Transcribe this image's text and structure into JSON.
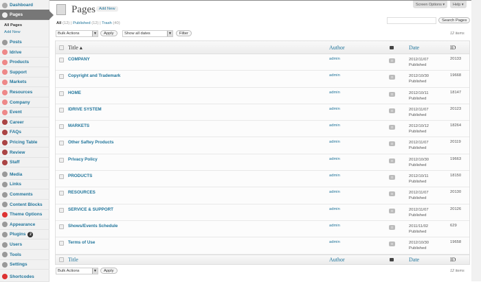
{
  "sidebar": {
    "top": [
      {
        "label": "Dashboard",
        "icon": "dashboard-icon"
      },
      {
        "label": "Pages",
        "icon": "pages-icon"
      }
    ],
    "sub": [
      {
        "label": "All Pages"
      },
      {
        "label": "Add New"
      }
    ],
    "groups": [
      [
        {
          "label": "Posts",
          "icon": "posts-icon",
          "color": "#999"
        },
        {
          "label": "Idrive",
          "icon": "custom-post-icon",
          "color": "#e88"
        },
        {
          "label": "Products",
          "icon": "custom-post-icon",
          "color": "#e88"
        },
        {
          "label": "Support",
          "icon": "custom-post-icon",
          "color": "#e88"
        },
        {
          "label": "Markets",
          "icon": "custom-post-icon",
          "color": "#e88"
        },
        {
          "label": "Resources",
          "icon": "custom-post-icon",
          "color": "#e88"
        },
        {
          "label": "Company",
          "icon": "custom-post-icon",
          "color": "#e88"
        },
        {
          "label": "Event",
          "icon": "custom-post-icon",
          "color": "#e88"
        },
        {
          "label": "Career",
          "icon": "shapes-icon",
          "color": "#a44"
        },
        {
          "label": "FAQs",
          "icon": "shapes-icon",
          "color": "#a44"
        },
        {
          "label": "Pricing Table",
          "icon": "shapes-icon",
          "color": "#a44"
        },
        {
          "label": "Review",
          "icon": "shapes-icon",
          "color": "#a44"
        },
        {
          "label": "Staff",
          "icon": "shapes-icon",
          "color": "#a44"
        }
      ],
      [
        {
          "label": "Media",
          "icon": "media-icon",
          "color": "#999"
        },
        {
          "label": "Links",
          "icon": "links-icon",
          "color": "#999"
        },
        {
          "label": "Comments",
          "icon": "comments-icon",
          "color": "#999"
        },
        {
          "label": "Content Blocks",
          "icon": "content-blocks-icon",
          "color": "#999"
        },
        {
          "label": "Theme Options",
          "icon": "theme-options-icon",
          "color": "#d33"
        },
        {
          "label": "Appearance",
          "icon": "appearance-icon",
          "color": "#999"
        },
        {
          "label": "Plugins",
          "icon": "plugins-icon",
          "color": "#999",
          "badge": "2"
        },
        {
          "label": "Users",
          "icon": "users-icon",
          "color": "#999"
        },
        {
          "label": "Tools",
          "icon": "tools-icon",
          "color": "#999"
        },
        {
          "label": "Settings",
          "icon": "settings-icon",
          "color": "#999"
        }
      ],
      [
        {
          "label": "Shortcodes",
          "icon": "shortcodes-icon",
          "color": "#d33"
        }
      ]
    ]
  },
  "header": {
    "title": "Pages",
    "add_new": "Add New",
    "screen_options": "Screen Options ▾",
    "help": "Help ▾"
  },
  "filters": {
    "all": "All",
    "all_count": "(12)",
    "published": "Published",
    "published_count": "(12)",
    "trash": "Trash",
    "trash_count": "(40)",
    "bulk": "Bulk Actions",
    "apply": "Apply",
    "dates": "Show all dates",
    "filter": "Filter",
    "search_button": "Search Pages",
    "search_value": "",
    "items": "12 items"
  },
  "columns": {
    "title": "Title ▴",
    "title_foot": "Title",
    "author": "Author",
    "date": "Date",
    "id": "ID"
  },
  "rows": [
    {
      "title": "COMPANY",
      "author": "admin",
      "comments": "0",
      "date": "2012/11/07",
      "status": "Published",
      "id": "20133"
    },
    {
      "title": "Copyright and Trademark",
      "author": "admin",
      "comments": "0",
      "date": "2012/10/30",
      "status": "Published",
      "id": "19668"
    },
    {
      "title": "HOME",
      "author": "admin",
      "comments": "0",
      "date": "2012/10/11",
      "status": "Published",
      "id": "18147"
    },
    {
      "title": "IDRIVE SYSTEM",
      "author": "admin",
      "comments": "0",
      "date": "2012/11/07",
      "status": "Published",
      "id": "20123"
    },
    {
      "title": "MARKETS",
      "author": "admin",
      "comments": "0",
      "date": "2012/10/12",
      "status": "Published",
      "id": "18264"
    },
    {
      "title": "Other Saftey Products",
      "author": "admin",
      "comments": "0",
      "date": "2012/11/07",
      "status": "Published",
      "id": "20119"
    },
    {
      "title": "Privacy Policy",
      "author": "admin",
      "comments": "0",
      "date": "2012/10/30",
      "status": "Published",
      "id": "19663"
    },
    {
      "title": "PRODUCTS",
      "author": "admin",
      "comments": "0",
      "date": "2012/10/11",
      "status": "Published",
      "id": "18150"
    },
    {
      "title": "RESOURCES",
      "author": "admin",
      "comments": "0",
      "date": "2012/11/07",
      "status": "Published",
      "id": "20130"
    },
    {
      "title": "SERVICE & SUPPORT",
      "author": "admin",
      "comments": "0",
      "date": "2012/11/07",
      "status": "Published",
      "id": "20126"
    },
    {
      "title": "Shows/Events Schedule",
      "author": "admin",
      "comments": "0",
      "date": "2011/11/02",
      "status": "Published",
      "id": "629"
    },
    {
      "title": "Terms of Use",
      "author": "admin",
      "comments": "0",
      "date": "2012/10/30",
      "status": "Published",
      "id": "19658"
    }
  ]
}
